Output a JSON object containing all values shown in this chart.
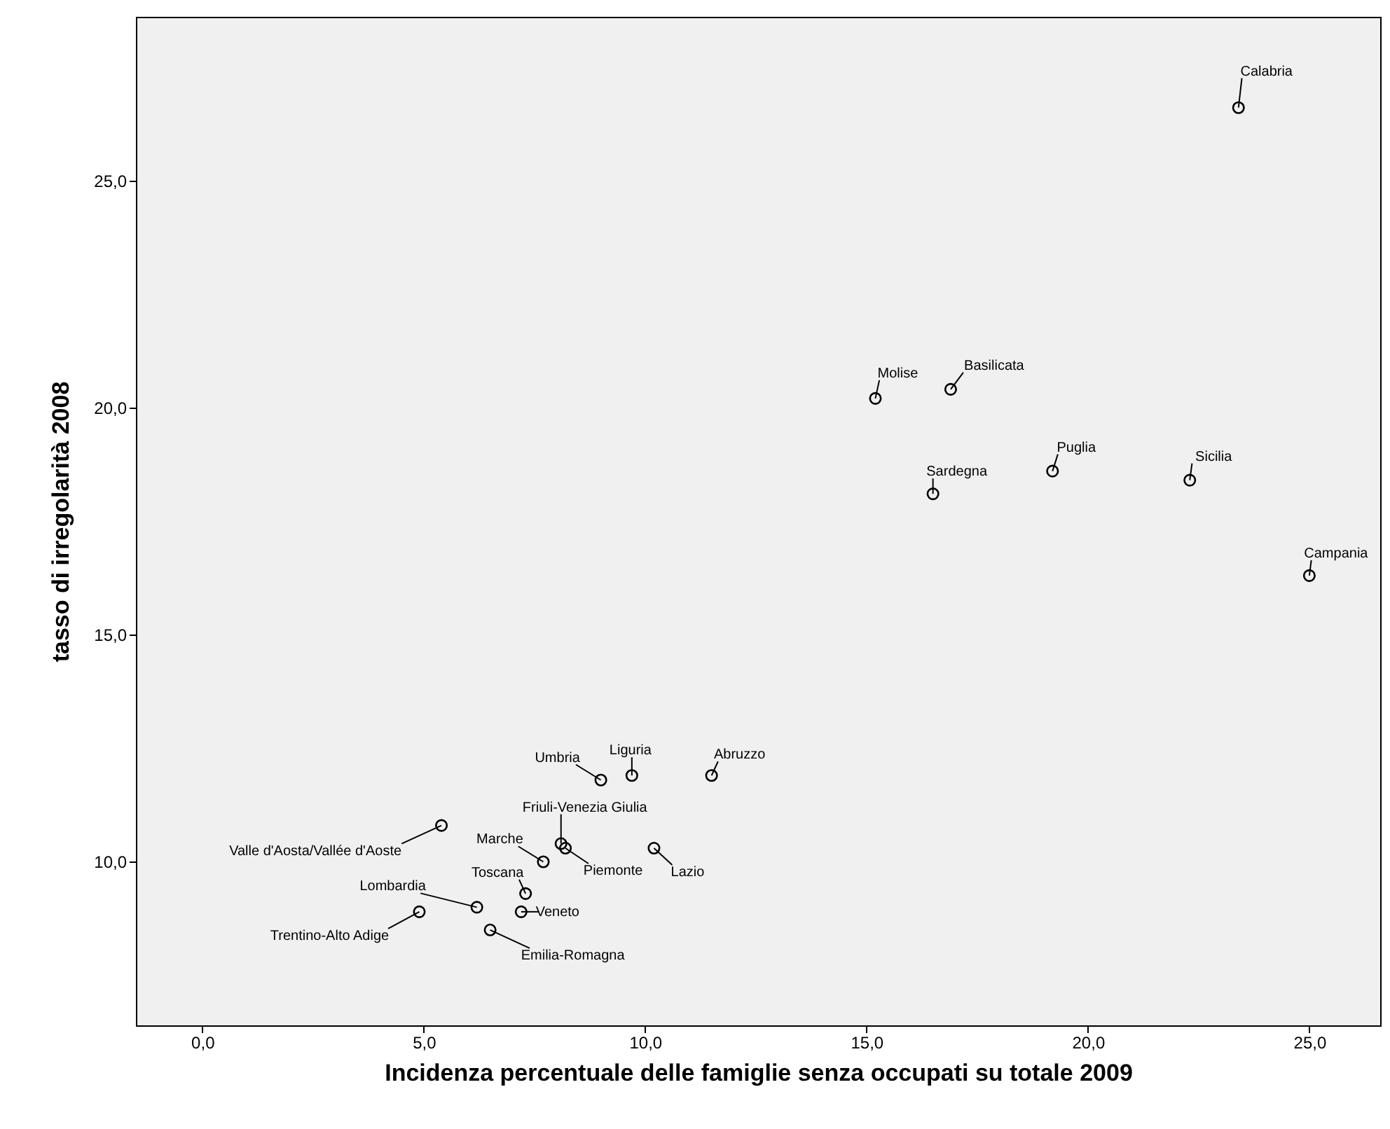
{
  "chart_data": {
    "type": "scatter",
    "xlabel": "Incidenza percentuale delle famiglie senza occupati su totale 2009",
    "ylabel": "tasso di irregolarità 2008",
    "x": [
      23.4,
      15.2,
      16.9,
      16.5,
      19.2,
      22.3,
      25.0,
      9.0,
      9.7,
      11.5,
      5.4,
      8.1,
      7.7,
      8.2,
      10.2,
      7.3,
      6.2,
      7.2,
      4.9,
      6.5
    ],
    "series": [
      {
        "color": "#000000",
        "values": [
          26.6,
          20.2,
          20.4,
          18.1,
          18.6,
          18.4,
          16.3,
          11.8,
          11.9,
          11.9,
          10.8,
          10.4,
          10.0,
          10.3,
          10.3,
          9.3,
          9.0,
          8.9,
          8.9,
          8.5
        ]
      }
    ],
    "marker": "circle",
    "xlim": [
      -1.5,
      26.6
    ],
    "ylim": [
      6.4,
      28.6
    ],
    "xticks": [
      {
        "value": 0,
        "label": "0,0"
      },
      {
        "value": 5,
        "label": "5,0"
      },
      {
        "value": 10,
        "label": "10,0"
      },
      {
        "value": 15,
        "label": "15,0"
      },
      {
        "value": 20,
        "label": "20,0"
      },
      {
        "value": 25,
        "label": "25,0"
      }
    ],
    "yticks": [
      {
        "value": 10,
        "label": "10,0"
      },
      {
        "value": 15,
        "label": "15,0"
      },
      {
        "value": 20,
        "label": "20,0"
      },
      {
        "value": 25,
        "label": "25,0"
      }
    ],
    "grid": false,
    "annotations": [
      {
        "text": "Calabria",
        "x": 23.4,
        "y": 26.6
      },
      {
        "text": "Molise",
        "x": 15.2,
        "y": 20.2
      },
      {
        "text": "Basilicata",
        "x": 16.9,
        "y": 20.4
      },
      {
        "text": "Sardegna",
        "x": 16.5,
        "y": 18.1
      },
      {
        "text": "Puglia",
        "x": 19.2,
        "y": 18.6
      },
      {
        "text": "Sicilia",
        "x": 22.3,
        "y": 18.4
      },
      {
        "text": "Campania",
        "x": 25.0,
        "y": 16.3
      },
      {
        "text": "Umbria",
        "x": 9.0,
        "y": 11.8
      },
      {
        "text": "Liguria",
        "x": 9.7,
        "y": 11.9
      },
      {
        "text": "Abruzzo",
        "x": 11.5,
        "y": 11.9
      },
      {
        "text": "Valle d'Aosta/Vallée d'Aoste",
        "x": 5.4,
        "y": 10.8
      },
      {
        "text": "Friuli-Venezia Giulia",
        "x": 8.1,
        "y": 10.4
      },
      {
        "text": "Marche",
        "x": 7.7,
        "y": 10.0
      },
      {
        "text": "Piemonte",
        "x": 8.2,
        "y": 10.3
      },
      {
        "text": "Lazio",
        "x": 10.2,
        "y": 10.3
      },
      {
        "text": "Toscana",
        "x": 7.3,
        "y": 9.3
      },
      {
        "text": "Lombardia",
        "x": 6.2,
        "y": 9.0
      },
      {
        "text": "Veneto",
        "x": 7.2,
        "y": 8.9
      },
      {
        "text": "Trentino-Alto Adige",
        "x": 4.9,
        "y": 8.9
      },
      {
        "text": "Emilia-Romagna",
        "x": 6.5,
        "y": 8.5
      }
    ]
  }
}
